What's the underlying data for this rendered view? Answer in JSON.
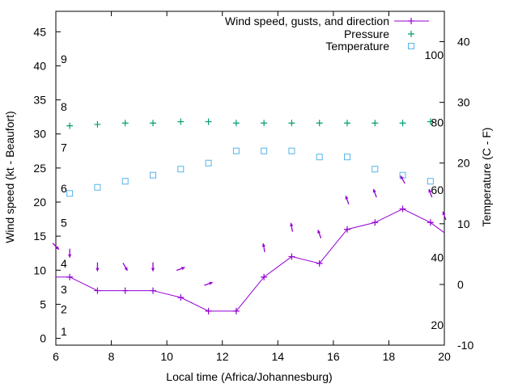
{
  "chart_data": {
    "type": "line",
    "xlabel": "Local time (Africa/Johannesburg)",
    "ylabel_left": "Wind speed (kt - Beaufort)",
    "ylabel_right": "Temperature (C - F)",
    "xlim": [
      6,
      20
    ],
    "ylim_left": [
      -1,
      48
    ],
    "ylim_right": [
      -10,
      45
    ],
    "x_ticks": [
      6,
      8,
      10,
      12,
      14,
      16,
      18,
      20
    ],
    "y_ticks_left": [
      0,
      5,
      10,
      15,
      20,
      25,
      30,
      35,
      40,
      45
    ],
    "y_ticks_right": [
      -10,
      0,
      10,
      20,
      30,
      40
    ],
    "beaufort_labels": [
      {
        "label": "1",
        "kt": 1
      },
      {
        "label": "2",
        "kt": 4.3
      },
      {
        "label": "3",
        "kt": 7.2
      },
      {
        "label": "4",
        "kt": 11
      },
      {
        "label": "5",
        "kt": 17
      },
      {
        "label": "6",
        "kt": 22
      },
      {
        "label": "7",
        "kt": 28
      },
      {
        "label": "8",
        "kt": 34
      },
      {
        "label": "9",
        "kt": 41
      }
    ],
    "fahrenheit_labels": [
      {
        "label": "20",
        "f": 20
      },
      {
        "label": "40",
        "f": 40
      },
      {
        "label": "60",
        "f": 60
      },
      {
        "label": "80",
        "f": 80
      },
      {
        "label": "100",
        "f": 100
      }
    ],
    "legend_position": "top-right",
    "series": [
      {
        "name": "Wind speed, gusts, and direction",
        "axis": "left",
        "style": "line-plus",
        "color": "#9400d3",
        "x": [
          6.0,
          6.5,
          7.5,
          8.5,
          9.5,
          10.5,
          11.5,
          12.5,
          13.5,
          14.5,
          15.5,
          16.5,
          17.5,
          18.5,
          19.5,
          20.0
        ],
        "y": [
          9,
          9,
          7,
          7,
          7,
          6,
          4,
          4,
          9,
          12,
          11,
          16,
          17,
          19,
          17,
          15.5
        ]
      },
      {
        "name": "Pressure",
        "axis": "left",
        "style": "plus",
        "color": "#009e73",
        "x": [
          6.5,
          7.5,
          8.5,
          9.5,
          10.5,
          11.5,
          12.5,
          13.5,
          14.5,
          15.5,
          16.5,
          17.5,
          18.5,
          19.5
        ],
        "y": [
          31.2,
          31.4,
          31.6,
          31.6,
          31.8,
          31.8,
          31.6,
          31.6,
          31.6,
          31.6,
          31.6,
          31.6,
          31.6,
          31.8
        ]
      },
      {
        "name": "Temperature",
        "axis": "right",
        "style": "square",
        "color": "#56b4e9",
        "x": [
          6.5,
          7.5,
          8.5,
          9.5,
          10.5,
          11.5,
          12.5,
          13.5,
          14.5,
          15.5,
          16.5,
          17.5,
          18.5,
          19.5
        ],
        "y": [
          15,
          16,
          17,
          18,
          19,
          20,
          22,
          22,
          22,
          21,
          21,
          19,
          18,
          17
        ]
      }
    ],
    "wind_direction_arrows": [
      {
        "x": 6.0,
        "y": 13.5,
        "dir_deg": 315
      },
      {
        "x": 6.5,
        "y": 12.5,
        "dir_deg": 0
      },
      {
        "x": 7.5,
        "y": 10.5,
        "dir_deg": 0
      },
      {
        "x": 8.5,
        "y": 10.5,
        "dir_deg": 330
      },
      {
        "x": 9.5,
        "y": 10.5,
        "dir_deg": 0
      },
      {
        "x": 10.5,
        "y": 10.2,
        "dir_deg": 250
      },
      {
        "x": 11.5,
        "y": 8.0,
        "dir_deg": 250
      },
      {
        "x": 13.5,
        "y": 13.3,
        "dir_deg": 170
      },
      {
        "x": 14.5,
        "y": 16.3,
        "dir_deg": 170
      },
      {
        "x": 15.5,
        "y": 15.3,
        "dir_deg": 160
      },
      {
        "x": 16.5,
        "y": 20.3,
        "dir_deg": 160
      },
      {
        "x": 17.5,
        "y": 21.3,
        "dir_deg": 160
      },
      {
        "x": 18.5,
        "y": 23.3,
        "dir_deg": 150
      },
      {
        "x": 19.5,
        "y": 21.3,
        "dir_deg": 160
      },
      {
        "x": 20.0,
        "y": 18.0,
        "dir_deg": 160
      }
    ]
  }
}
